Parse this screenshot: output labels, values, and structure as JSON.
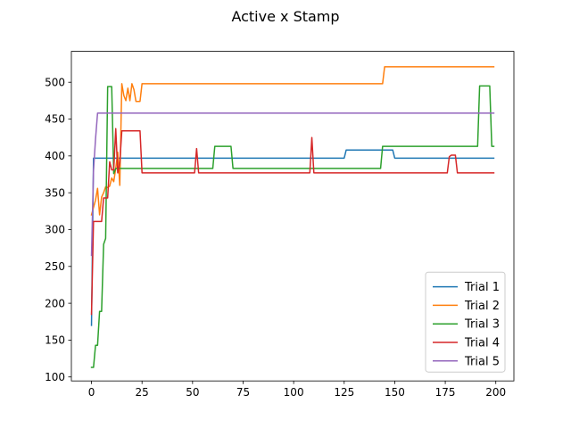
{
  "chart_data": {
    "type": "line",
    "title": "Active x Stamp",
    "xlabel": "",
    "ylabel": "",
    "xlim": [
      -9.95,
      208.95
    ],
    "ylim": [
      94.6,
      541.9
    ],
    "xticks": [
      0,
      25,
      50,
      75,
      100,
      125,
      150,
      175,
      200
    ],
    "yticks": [
      100,
      150,
      200,
      250,
      300,
      350,
      400,
      450,
      500
    ],
    "grid": false,
    "legend_position": "lower right",
    "series": [
      {
        "name": "Trial 1",
        "color": "#1f77b4",
        "points": [
          [
            0,
            170
          ],
          [
            1,
            397
          ],
          [
            125,
            397
          ],
          [
            126,
            408
          ],
          [
            149,
            408
          ],
          [
            150,
            397
          ],
          [
            199,
            397
          ]
        ]
      },
      {
        "name": "Trial 2",
        "color": "#ff7f0e",
        "points": [
          [
            0,
            320
          ],
          [
            1,
            330
          ],
          [
            2,
            340
          ],
          [
            3,
            356
          ],
          [
            4,
            320
          ],
          [
            5,
            344
          ],
          [
            6,
            350
          ],
          [
            7,
            358
          ],
          [
            8,
            357
          ],
          [
            9,
            359
          ],
          [
            10,
            370
          ],
          [
            11,
            365
          ],
          [
            12,
            383
          ],
          [
            13,
            405
          ],
          [
            14,
            360
          ],
          [
            15,
            498
          ],
          [
            16,
            482
          ],
          [
            17,
            475
          ],
          [
            18,
            492
          ],
          [
            19,
            475
          ],
          [
            20,
            498
          ],
          [
            21,
            490
          ],
          [
            22,
            474
          ],
          [
            23,
            474
          ],
          [
            24,
            474
          ],
          [
            25,
            498
          ],
          [
            144,
            498
          ],
          [
            145,
            521
          ],
          [
            199,
            521
          ]
        ]
      },
      {
        "name": "Trial 3",
        "color": "#2ca02c",
        "points": [
          [
            0,
            113
          ],
          [
            1,
            113
          ],
          [
            2,
            143
          ],
          [
            3,
            143
          ],
          [
            4,
            189
          ],
          [
            5,
            189
          ],
          [
            6,
            280
          ],
          [
            7,
            288
          ],
          [
            8,
            494
          ],
          [
            9,
            494
          ],
          [
            10,
            494
          ],
          [
            11,
            376
          ],
          [
            12,
            383
          ],
          [
            60,
            383
          ],
          [
            61,
            413
          ],
          [
            69,
            413
          ],
          [
            70,
            383
          ],
          [
            143,
            383
          ],
          [
            144,
            413
          ],
          [
            191,
            413
          ],
          [
            192,
            495
          ],
          [
            197,
            495
          ],
          [
            198,
            413
          ],
          [
            199,
            413
          ]
        ]
      },
      {
        "name": "Trial 4",
        "color": "#d62728",
        "points": [
          [
            0,
            185
          ],
          [
            1,
            311
          ],
          [
            2,
            311
          ],
          [
            3,
            311
          ],
          [
            4,
            311
          ],
          [
            5,
            311
          ],
          [
            6,
            343
          ],
          [
            7,
            343
          ],
          [
            8,
            343
          ],
          [
            9,
            392
          ],
          [
            10,
            381
          ],
          [
            11,
            381
          ],
          [
            12,
            437
          ],
          [
            13,
            377
          ],
          [
            14,
            391
          ],
          [
            15,
            434
          ],
          [
            24,
            434
          ],
          [
            25,
            377
          ],
          [
            51,
            377
          ],
          [
            52,
            410
          ],
          [
            53,
            377
          ],
          [
            108,
            377
          ],
          [
            109,
            425
          ],
          [
            110,
            377
          ],
          [
            176,
            377
          ],
          [
            177,
            399
          ],
          [
            178,
            401
          ],
          [
            180,
            401
          ],
          [
            181,
            377
          ],
          [
            199,
            377
          ]
        ]
      },
      {
        "name": "Trial 5",
        "color": "#9467bd",
        "points": [
          [
            0,
            265
          ],
          [
            1,
            380
          ],
          [
            2,
            423
          ],
          [
            3,
            458
          ],
          [
            199,
            458
          ]
        ]
      }
    ]
  }
}
